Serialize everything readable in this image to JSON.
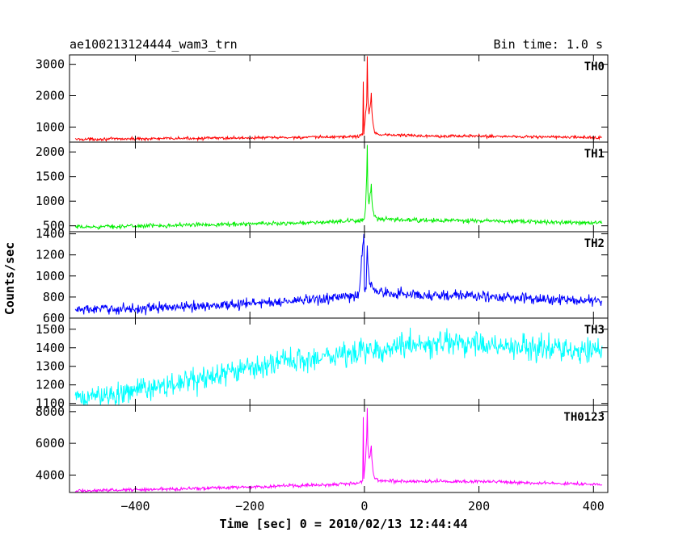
{
  "header": {
    "title": "ae100213124444_wam3_trn",
    "bin_time": "Bin time: 1.0 s"
  },
  "chart_data": {
    "type": "line",
    "xlabel": "Time [sec] 0 = 2010/02/13 12:44:44",
    "ylabel": "Counts/sec",
    "xlim": [
      -515,
      425
    ],
    "x_ticks": [
      -400,
      -200,
      0,
      200,
      400
    ],
    "x_tick_labels": [
      "−400",
      "−200",
      "0",
      "200",
      "400"
    ],
    "grid": false,
    "panels": [
      {
        "name": "TH0",
        "color": "#ff0000",
        "ylim": [
          520,
          3300
        ],
        "y_ticks": [
          1000,
          2000,
          3000
        ],
        "y_tick_labels": [
          "1000",
          "2000",
          "3000"
        ],
        "points": [
          [
            -505,
            610
          ],
          [
            -300,
            640
          ],
          [
            -100,
            670
          ],
          [
            -10,
            700
          ],
          [
            -3,
            780
          ],
          [
            -2,
            2450
          ],
          [
            -1,
            800
          ],
          [
            0,
            1000
          ],
          [
            2,
            1400
          ],
          [
            4,
            1800
          ],
          [
            5,
            3300
          ],
          [
            6,
            1900
          ],
          [
            8,
            1400
          ],
          [
            10,
            1700
          ],
          [
            12,
            2000
          ],
          [
            13,
            1500
          ],
          [
            15,
            1100
          ],
          [
            18,
            850
          ],
          [
            25,
            760
          ],
          [
            100,
            720
          ],
          [
            200,
            710
          ],
          [
            300,
            690
          ],
          [
            415,
            660
          ]
        ]
      },
      {
        "name": "TH1",
        "color": "#00ee00",
        "ylim": [
          380,
          2200
        ],
        "y_ticks": [
          500,
          1000,
          1500,
          2000
        ],
        "y_tick_labels": [
          "500",
          "1000",
          "1500",
          "2000"
        ],
        "points": [
          [
            -505,
            470
          ],
          [
            -300,
            520
          ],
          [
            -100,
            560
          ],
          [
            -10,
            600
          ],
          [
            0,
            650
          ],
          [
            2,
            900
          ],
          [
            4,
            1500
          ],
          [
            5,
            2200
          ],
          [
            6,
            1200
          ],
          [
            8,
            900
          ],
          [
            10,
            1100
          ],
          [
            12,
            1300
          ],
          [
            13,
            1050
          ],
          [
            15,
            800
          ],
          [
            18,
            680
          ],
          [
            25,
            630
          ],
          [
            100,
            610
          ],
          [
            200,
            600
          ],
          [
            300,
            580
          ],
          [
            415,
            560
          ]
        ]
      },
      {
        "name": "TH2",
        "color": "#0000ff",
        "ylim": [
          600,
          1420
        ],
        "y_ticks": [
          600,
          800,
          1000,
          1200,
          1400
        ],
        "y_tick_labels": [
          "600",
          "800",
          "1000",
          "1200",
          "1400"
        ],
        "points": [
          [
            -505,
            680
          ],
          [
            -400,
            690
          ],
          [
            -300,
            710
          ],
          [
            -200,
            740
          ],
          [
            -100,
            770
          ],
          [
            -10,
            810
          ],
          [
            -1,
            1400
          ],
          [
            0,
            850
          ],
          [
            3,
            900
          ],
          [
            5,
            1350
          ],
          [
            7,
            1000
          ],
          [
            10,
            950
          ],
          [
            15,
            880
          ],
          [
            30,
            840
          ],
          [
            100,
            820
          ],
          [
            200,
            810
          ],
          [
            300,
            780
          ],
          [
            415,
            760
          ]
        ]
      },
      {
        "name": "TH3",
        "color": "#00ffff",
        "ylim": [
          1090,
          1560
        ],
        "y_ticks": [
          1100,
          1200,
          1300,
          1400,
          1500
        ],
        "y_tick_labels": [
          "1100",
          "1200",
          "1300",
          "1400",
          "1500"
        ],
        "points": [
          [
            -505,
            1120
          ],
          [
            -400,
            1170
          ],
          [
            -300,
            1220
          ],
          [
            -200,
            1290
          ],
          [
            -100,
            1340
          ],
          [
            0,
            1380
          ],
          [
            50,
            1410
          ],
          [
            100,
            1420
          ],
          [
            200,
            1420
          ],
          [
            300,
            1400
          ],
          [
            415,
            1380
          ]
        ]
      },
      {
        "name": "TH0123",
        "color": "#ff00ff",
        "ylim": [
          2900,
          8400
        ],
        "y_ticks": [
          4000,
          6000,
          8000
        ],
        "y_tick_labels": [
          "4000",
          "6000",
          "8000"
        ],
        "points": [
          [
            -505,
            3000
          ],
          [
            -300,
            3150
          ],
          [
            -100,
            3350
          ],
          [
            -10,
            3500
          ],
          [
            -3,
            3600
          ],
          [
            -2,
            7700
          ],
          [
            -1,
            3700
          ],
          [
            0,
            4200
          ],
          [
            2,
            5000
          ],
          [
            4,
            6500
          ],
          [
            5,
            8300
          ],
          [
            6,
            6000
          ],
          [
            8,
            5000
          ],
          [
            10,
            5300
          ],
          [
            12,
            5900
          ],
          [
            13,
            5000
          ],
          [
            15,
            4200
          ],
          [
            18,
            3800
          ],
          [
            25,
            3650
          ],
          [
            100,
            3600
          ],
          [
            200,
            3600
          ],
          [
            300,
            3500
          ],
          [
            415,
            3400
          ]
        ]
      }
    ]
  }
}
